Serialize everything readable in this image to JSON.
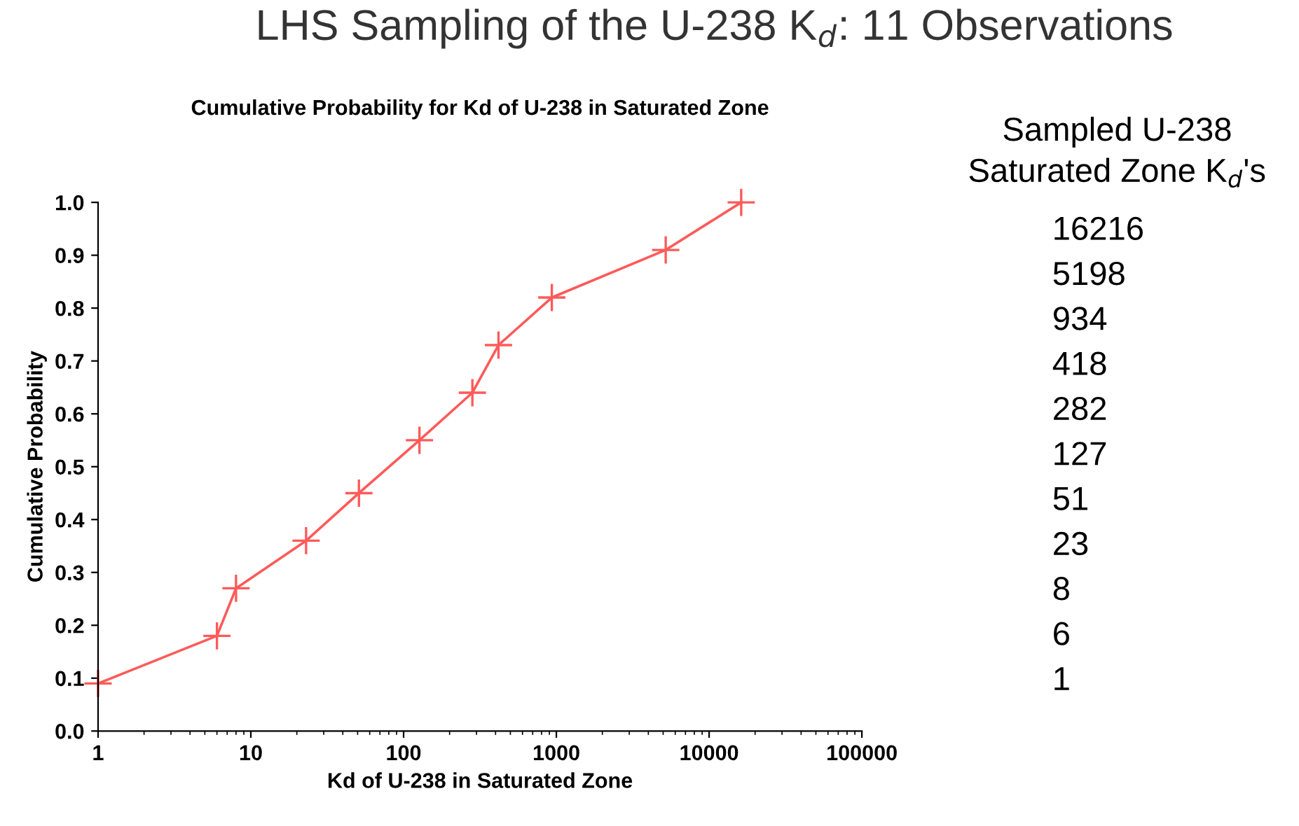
{
  "chart_data": {
    "type": "line",
    "title": "LHS Sampling of the U-238 K$_{d}$: 11 Observations",
    "subtitle": "Cumulative Probability for Kd of U-238 in Saturated Zone",
    "xlabel": "Kd of U-238 in Saturated Zone",
    "ylabel": "Cumulative Probability",
    "x": [
      1,
      6,
      8,
      23,
      51,
      127,
      282,
      418,
      934,
      5198,
      16216
    ],
    "series": [
      {
        "color": "#ff5a5a",
        "values": [
          0.09,
          0.18,
          0.27,
          0.36,
          0.45,
          0.55,
          0.64,
          0.73,
          0.82,
          0.91,
          1.0
        ]
      }
    ],
    "log": "x",
    "xlim": [
      1,
      100000
    ],
    "xticks": [
      1,
      10,
      100,
      1000,
      10000,
      100000
    ],
    "ylim": [
      0,
      1
    ],
    "yticks": [
      {
        "value": 0,
        "label": "0.0"
      },
      0.1,
      0.2,
      0.3,
      0.4,
      0.5,
      0.6,
      0.7,
      0.8,
      0.9,
      {
        "value": 1,
        "label": "1.0"
      }
    ],
    "marker": "cross",
    "line_style": "solid",
    "grid": false,
    "legend": false,
    "annotations": [
      "Sampled U-238",
      "Saturated Zone K$_{d}$'s",
      "16216",
      "5198",
      "934",
      "418",
      "282",
      "127",
      "51",
      "23",
      "8",
      "6",
      "1"
    ]
  }
}
